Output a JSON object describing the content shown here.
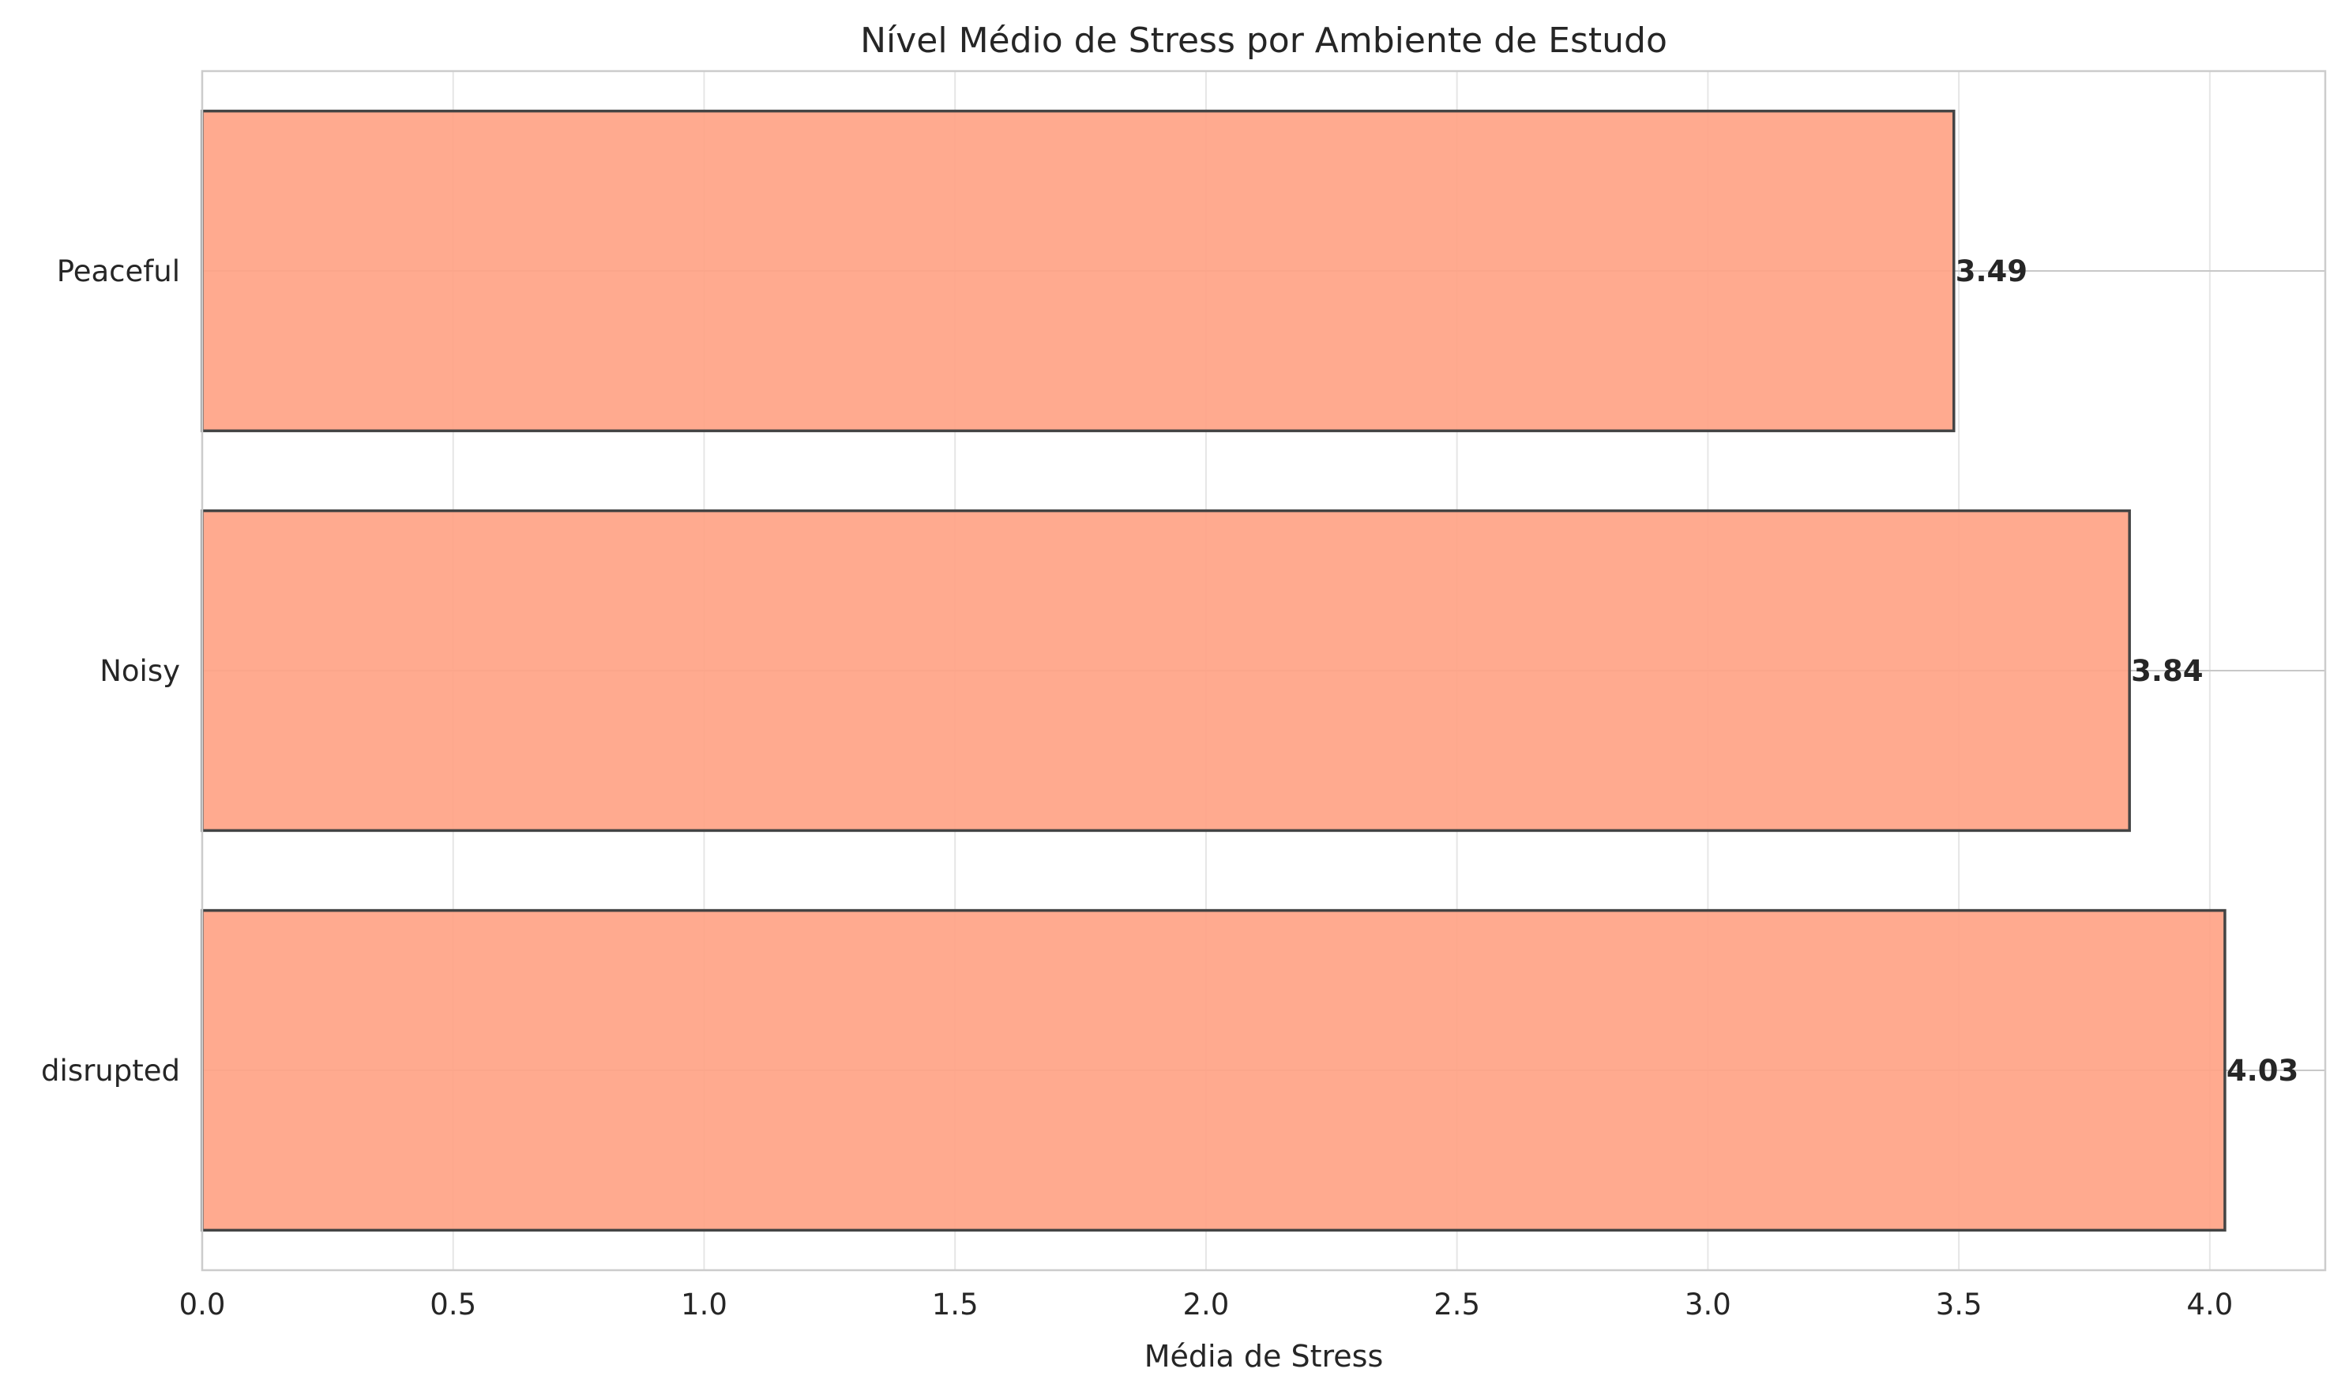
{
  "chart_data": {
    "type": "bar",
    "orientation": "horizontal",
    "title": "Nível Médio de Stress por Ambiente de Estudo",
    "xlabel": "Média de Stress",
    "ylabel": "",
    "categories": [
      "disrupted",
      "Noisy",
      "Peaceful"
    ],
    "values": [
      4.03,
      3.84,
      3.49
    ],
    "value_labels": [
      "4.03",
      "3.84",
      "3.49"
    ],
    "xlim": [
      0,
      4.23
    ],
    "xticks": [
      0.0,
      0.5,
      1.0,
      1.5,
      2.0,
      2.5,
      3.0,
      3.5,
      4.0
    ],
    "xtick_labels": [
      "0.0",
      "0.5",
      "1.0",
      "1.5",
      "2.0",
      "2.5",
      "3.0",
      "3.5",
      "4.0"
    ],
    "grid": true,
    "colors": {
      "bar_fill": "#ffa386",
      "bar_edge": "#444444",
      "grid": "#e6e6e6",
      "spine": "#cccccc",
      "text": "#262626"
    }
  }
}
